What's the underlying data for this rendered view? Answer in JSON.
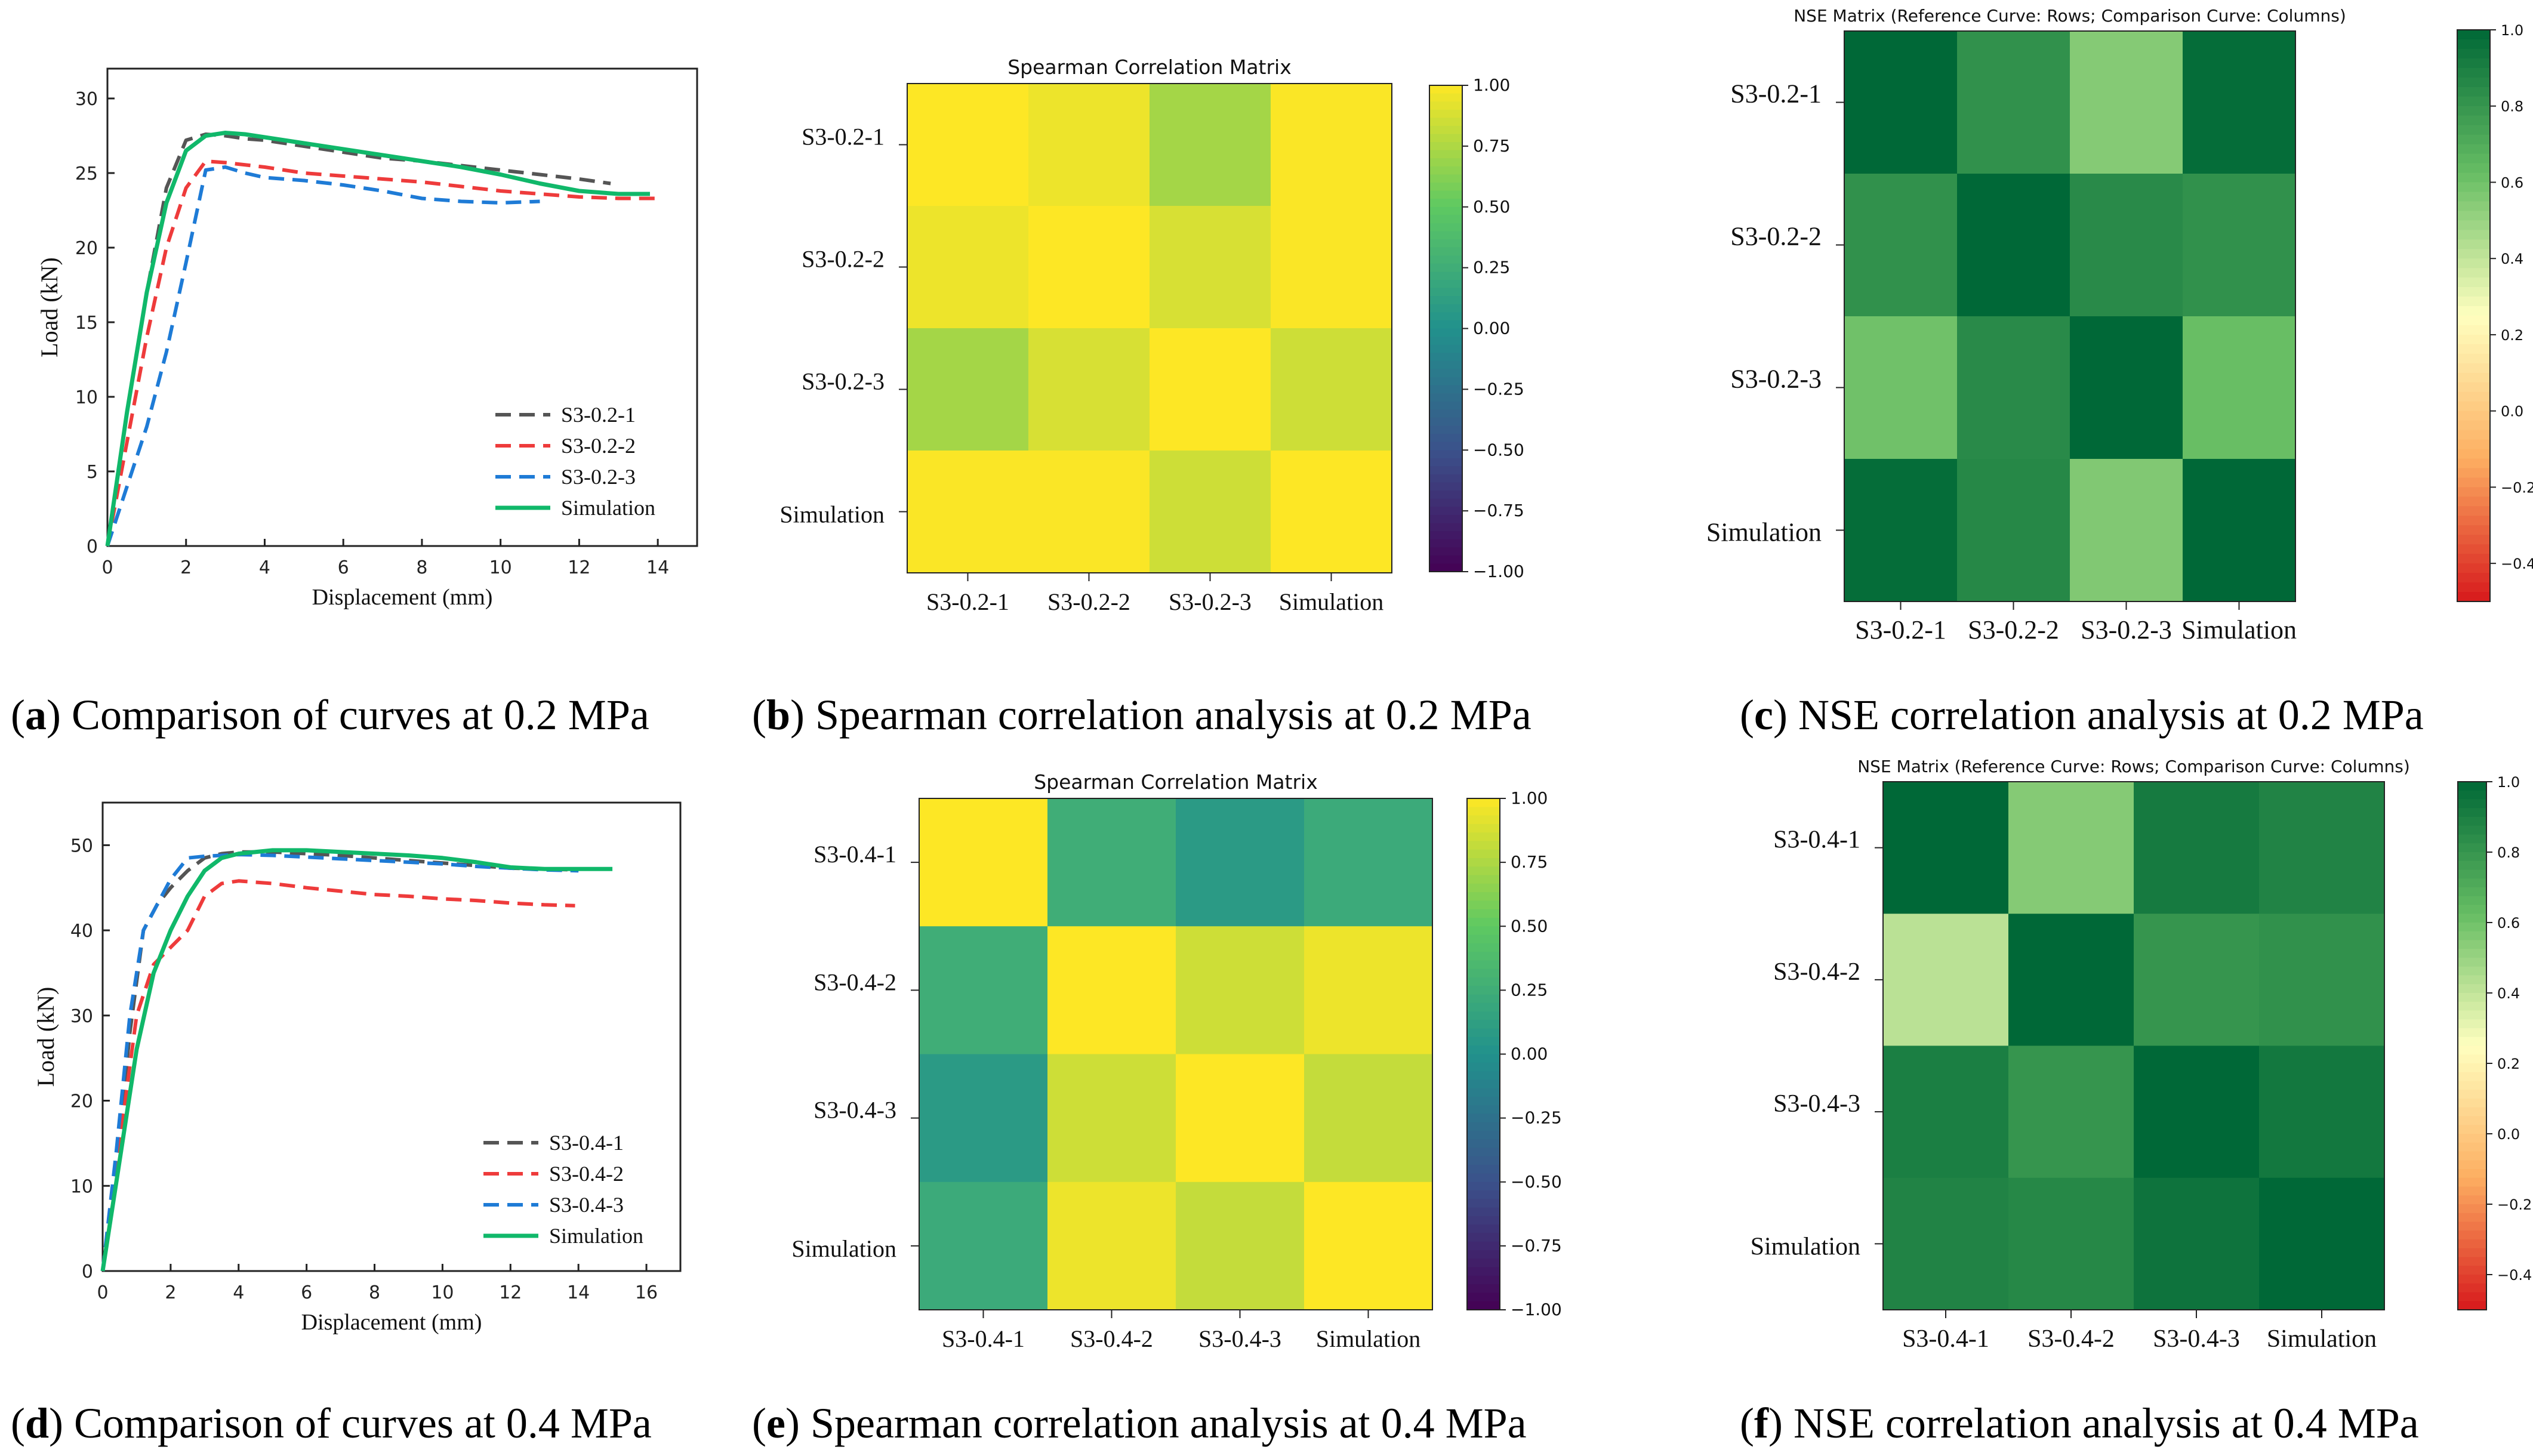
{
  "colors": {
    "exp1": "#555555",
    "exp2": "#ee3b3b",
    "exp3": "#1e7bd6",
    "simulation": "#10b86a"
  },
  "chart_data": [
    {
      "id": "a",
      "type": "line",
      "caption": {
        "letter": "a",
        "text": "Comparison of curves at 0.2 MPa"
      },
      "xlabel": "Displacement (mm)",
      "ylabel": "Load (kN)",
      "xlim": [
        0,
        15
      ],
      "ylim": [
        0,
        32
      ],
      "xticks": [
        0,
        2,
        4,
        6,
        8,
        10,
        12,
        14
      ],
      "yticks": [
        0,
        5,
        10,
        15,
        20,
        25,
        30
      ],
      "legend": "bottom-right",
      "series": [
        {
          "name": "S3-0.2-1",
          "color": "#555555",
          "dash": "dash",
          "x": [
            0,
            0.5,
            1.0,
            1.5,
            2.0,
            2.5,
            3.0,
            3.5,
            4.0,
            5.0,
            6.0,
            7.0,
            8.0,
            9.0,
            10.0,
            11.0,
            12.0,
            12.8
          ],
          "y": [
            0,
            9,
            17,
            24,
            27.2,
            27.6,
            27.5,
            27.3,
            27.2,
            26.8,
            26.4,
            26.0,
            25.8,
            25.5,
            25.2,
            24.9,
            24.6,
            24.3
          ]
        },
        {
          "name": "S3-0.2-2",
          "color": "#ee3b3b",
          "dash": "dash",
          "x": [
            0,
            0.5,
            1.0,
            1.5,
            2.0,
            2.5,
            3.0,
            4.0,
            5.0,
            6.0,
            7.0,
            8.0,
            9.0,
            10.0,
            11.0,
            12.0,
            13.0,
            14.0
          ],
          "y": [
            0,
            7,
            14,
            20,
            24,
            25.8,
            25.7,
            25.4,
            25.0,
            24.8,
            24.6,
            24.4,
            24.1,
            23.8,
            23.6,
            23.4,
            23.3,
            23.3
          ]
        },
        {
          "name": "S3-0.2-3",
          "color": "#1e7bd6",
          "dash": "dash",
          "x": [
            0,
            0.5,
            1.0,
            1.5,
            2.0,
            2.5,
            3.0,
            3.5,
            4.0,
            5.0,
            6.0,
            7.0,
            8.0,
            9.0,
            10.0,
            11.0
          ],
          "y": [
            0,
            4,
            8,
            13,
            19,
            25.2,
            25.4,
            25.0,
            24.7,
            24.5,
            24.2,
            23.8,
            23.3,
            23.1,
            23.0,
            23.1
          ]
        },
        {
          "name": "Simulation",
          "color": "#10b86a",
          "dash": "solid",
          "x": [
            0,
            0.5,
            1.0,
            1.5,
            2.0,
            2.5,
            3.0,
            3.5,
            4.0,
            5.0,
            6.0,
            7.0,
            8.0,
            9.0,
            10.0,
            11.0,
            12.0,
            13.0,
            13.8
          ],
          "y": [
            0,
            9,
            17,
            23,
            26.5,
            27.5,
            27.7,
            27.6,
            27.4,
            27.0,
            26.6,
            26.2,
            25.8,
            25.4,
            24.9,
            24.3,
            23.8,
            23.6,
            23.6
          ]
        }
      ]
    },
    {
      "id": "b",
      "type": "heatmap",
      "caption": {
        "letter": "b",
        "text": "Spearman correlation analysis at 0.2 MPa"
      },
      "title": "Spearman Correlation Matrix",
      "row_labels": [
        "S3-0.2-1",
        "S3-0.2-2",
        "S3-0.2-3",
        "Simulation"
      ],
      "col_labels": [
        "S3-0.2-1",
        "S3-0.2-2",
        "S3-0.2-3",
        "Simulation"
      ],
      "values": [
        [
          1.0,
          0.95,
          0.72,
          0.99
        ],
        [
          0.95,
          1.0,
          0.88,
          0.99
        ],
        [
          0.72,
          0.88,
          1.0,
          0.85
        ],
        [
          0.99,
          0.99,
          0.85,
          1.0
        ]
      ],
      "colormap": "viridis",
      "vmin": -1,
      "vmax": 1,
      "colorbar_ticks": [
        "1.00",
        "0.75",
        "0.50",
        "0.25",
        "0.00",
        "−0.25",
        "−0.50",
        "−0.75",
        "−1.00"
      ]
    },
    {
      "id": "c",
      "type": "heatmap",
      "caption": {
        "letter": "c",
        "text": "NSE correlation analysis at 0.2 MPa"
      },
      "title": "NSE Matrix (Reference Curve: Rows; Comparison Curve: Columns)",
      "row_labels": [
        "S3-0.2-1",
        "S3-0.2-2",
        "S3-0.2-3",
        "Simulation"
      ],
      "col_labels": [
        "S3-0.2-1",
        "S3-0.2-2",
        "S3-0.2-3",
        "Simulation"
      ],
      "values": [
        [
          1.0,
          0.82,
          0.55,
          0.98
        ],
        [
          0.82,
          1.0,
          0.85,
          0.82
        ],
        [
          0.6,
          0.85,
          1.0,
          0.62
        ],
        [
          0.98,
          0.86,
          0.56,
          1.0
        ]
      ],
      "colormap": "RdYlGn",
      "vmin": -0.5,
      "vmax": 1.0,
      "colorbar_ticks": [
        "1.0",
        "0.8",
        "0.6",
        "0.4",
        "0.2",
        "0.0",
        "−0.2",
        "−0.4"
      ]
    },
    {
      "id": "d",
      "type": "line",
      "caption": {
        "letter": "d",
        "text": "Comparison of curves at 0.4 MPa"
      },
      "xlabel": "Displacement (mm)",
      "ylabel": "Load (kN)",
      "xlim": [
        0,
        17
      ],
      "ylim": [
        0,
        55
      ],
      "xticks": [
        0,
        2,
        4,
        6,
        8,
        10,
        12,
        14,
        16
      ],
      "yticks": [
        0,
        10,
        20,
        30,
        40,
        50
      ],
      "legend": "bottom-right",
      "series": [
        {
          "name": "S3-0.4-1",
          "color": "#555555",
          "dash": "dash",
          "x": [
            0,
            0.4,
            0.8,
            1.2,
            1.6,
            2.0,
            2.5,
            3.0,
            3.5,
            4.0,
            5.0,
            6.0,
            7.0,
            8.0,
            9.0,
            10.0,
            11.0,
            12.0,
            13.0,
            14.0
          ],
          "y": [
            0,
            12,
            28,
            40,
            43,
            45,
            47,
            48.5,
            49,
            49.2,
            49.2,
            49.0,
            48.8,
            48.5,
            48.2,
            47.9,
            47.6,
            47.3,
            47.2,
            47.1
          ]
        },
        {
          "name": "S3-0.4-2",
          "color": "#ee3b3b",
          "dash": "dash",
          "x": [
            0,
            0.5,
            1.0,
            1.5,
            2.0,
            2.5,
            3.0,
            3.5,
            4.0,
            5.0,
            6.0,
            7.0,
            8.0,
            9.0,
            10.0,
            11.0,
            12.0,
            13.0,
            13.9
          ],
          "y": [
            0,
            15,
            30,
            36,
            38,
            40,
            44,
            45.5,
            45.8,
            45.5,
            45.0,
            44.6,
            44.2,
            44.0,
            43.7,
            43.5,
            43.2,
            43.0,
            42.9
          ]
        },
        {
          "name": "S3-0.4-3",
          "color": "#1e7bd6",
          "dash": "dash",
          "x": [
            0,
            0.4,
            0.8,
            1.2,
            1.6,
            2.0,
            2.5,
            3.0,
            3.5,
            4.0,
            5.0,
            6.0,
            7.0,
            8.0,
            9.0,
            10.0,
            11.0,
            12.0,
            13.0,
            14.0
          ],
          "y": [
            0,
            14,
            30,
            40,
            43,
            46,
            48.5,
            48.7,
            48.8,
            48.9,
            48.8,
            48.6,
            48.4,
            48.2,
            48.0,
            47.8,
            47.5,
            47.3,
            47.1,
            47.0
          ]
        },
        {
          "name": "Simulation",
          "color": "#10b86a",
          "dash": "solid",
          "x": [
            0,
            0.5,
            1.0,
            1.5,
            2.0,
            2.5,
            3.0,
            3.5,
            4.0,
            5.0,
            6.0,
            7.0,
            8.0,
            9.0,
            10.0,
            11.0,
            12.0,
            13.0,
            14.0,
            15.0
          ],
          "y": [
            0,
            13,
            26,
            35,
            40,
            44,
            47,
            48.5,
            49.0,
            49.4,
            49.4,
            49.2,
            49.0,
            48.8,
            48.5,
            48.0,
            47.4,
            47.2,
            47.2,
            47.2
          ]
        }
      ]
    },
    {
      "id": "e",
      "type": "heatmap",
      "caption": {
        "letter": "e",
        "text": "Spearman correlation analysis at 0.4 MPa"
      },
      "title": "Spearman Correlation Matrix",
      "row_labels": [
        "S3-0.4-1",
        "S3-0.4-2",
        "S3-0.4-3",
        "Simulation"
      ],
      "col_labels": [
        "S3-0.4-1",
        "S3-0.4-2",
        "S3-0.4-3",
        "Simulation"
      ],
      "values": [
        [
          1.0,
          0.25,
          0.08,
          0.22
        ],
        [
          0.25,
          1.0,
          0.85,
          0.95
        ],
        [
          0.08,
          0.85,
          1.0,
          0.82
        ],
        [
          0.22,
          0.95,
          0.82,
          1.0
        ]
      ],
      "colormap": "viridis",
      "vmin": -1,
      "vmax": 1,
      "colorbar_ticks": [
        "1.00",
        "0.75",
        "0.50",
        "0.25",
        "0.00",
        "−0.25",
        "−0.50",
        "−0.75",
        "−1.00"
      ]
    },
    {
      "id": "f",
      "type": "heatmap",
      "caption": {
        "letter": "f",
        "text": "NSE correlation analysis at 0.4 MPa"
      },
      "title": "NSE Matrix (Reference Curve: Rows; Comparison Curve: Columns)",
      "row_labels": [
        "S3-0.4-1",
        "S3-0.4-2",
        "S3-0.4-3",
        "Simulation"
      ],
      "col_labels": [
        "S3-0.4-1",
        "S3-0.4-2",
        "S3-0.4-3",
        "Simulation"
      ],
      "values": [
        [
          1.0,
          0.55,
          0.92,
          0.88
        ],
        [
          0.42,
          1.0,
          0.8,
          0.82
        ],
        [
          0.9,
          0.8,
          1.0,
          0.93
        ],
        [
          0.88,
          0.86,
          0.95,
          1.0
        ]
      ],
      "colormap": "RdYlGn",
      "vmin": -0.5,
      "vmax": 1.0,
      "colorbar_ticks": [
        "1.0",
        "0.8",
        "0.6",
        "0.4",
        "0.2",
        "0.0",
        "−0.2",
        "−0.4"
      ]
    }
  ]
}
